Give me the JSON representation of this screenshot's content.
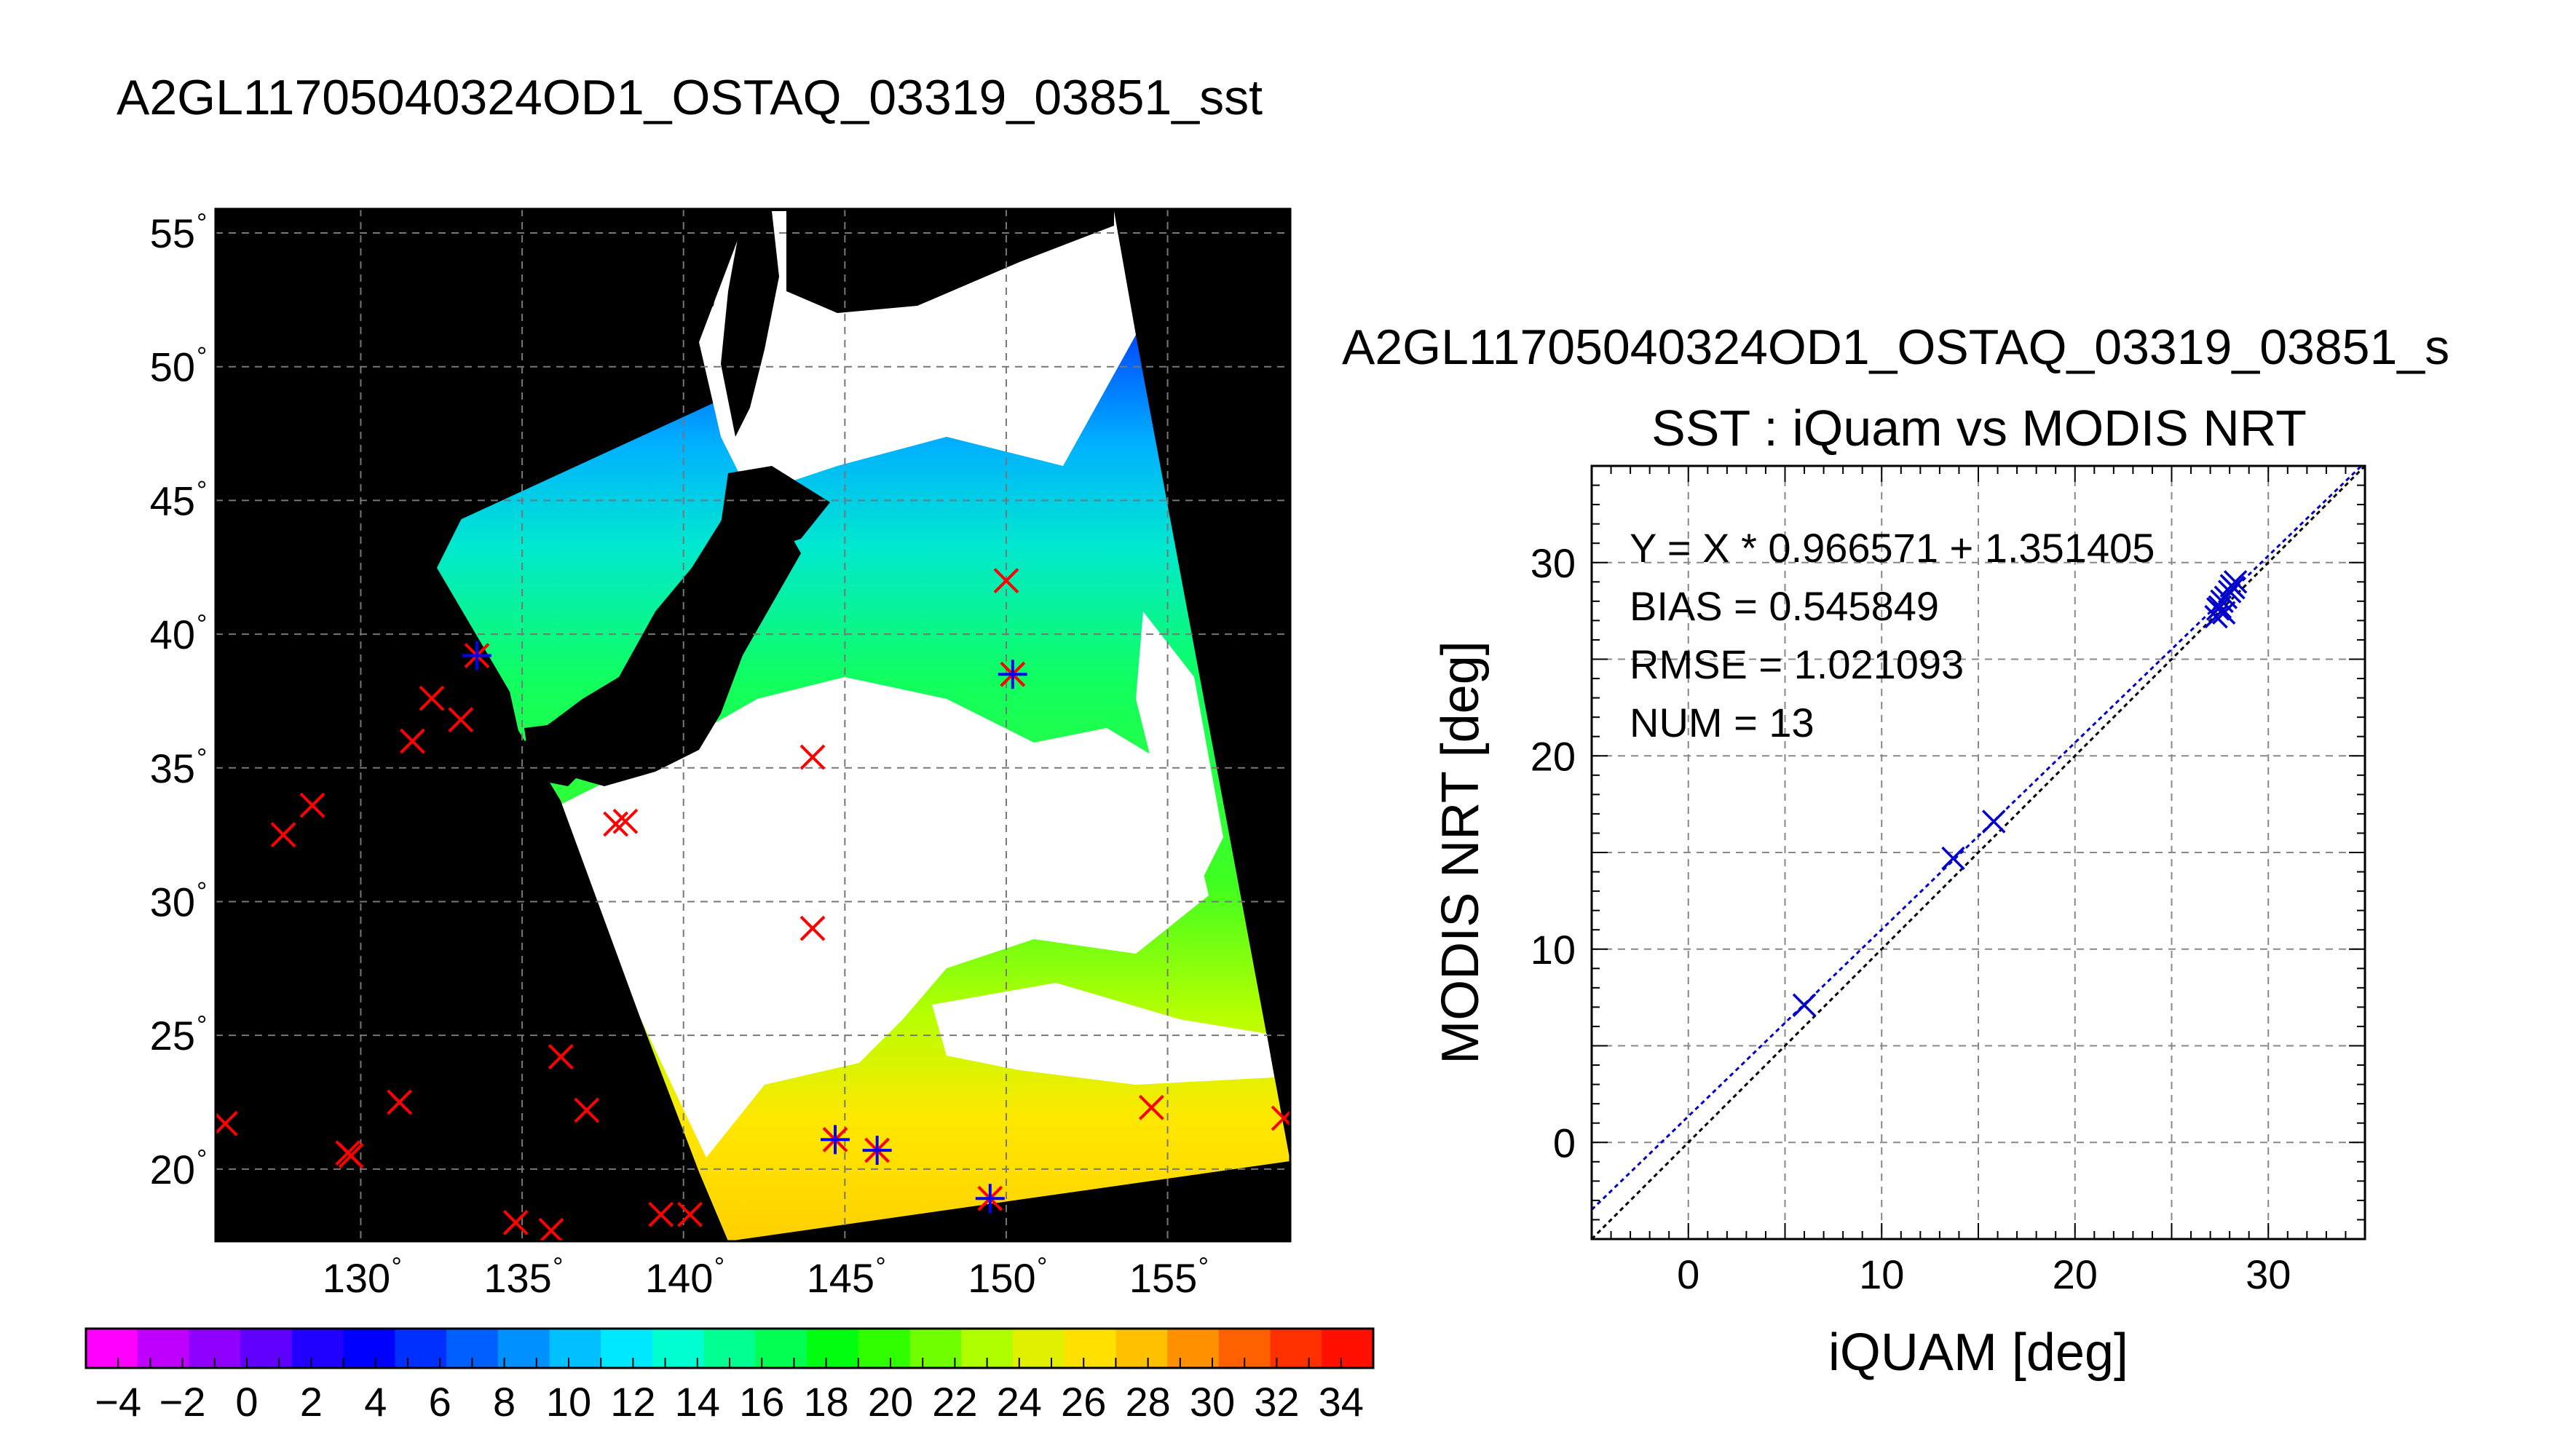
{
  "map": {
    "title": "A2GL11705040324OD1_OSTAQ_03319_03851_sst",
    "lat_ticks": [
      55,
      50,
      45,
      40,
      35,
      30,
      25,
      20
    ],
    "lon_ticks": [
      130,
      135,
      140,
      145,
      150,
      155
    ],
    "degree_symbol": "°",
    "lon_range": [
      125.5,
      158.8
    ],
    "lat_range": [
      17.3,
      55.9
    ],
    "ocean_color": "#000000",
    "cloud_color": "#ffffff",
    "match_markers": [
      {
        "lon": 133.6,
        "lat": 39.2,
        "paired": true
      },
      {
        "lon": 150.2,
        "lat": 38.5,
        "paired": true
      },
      {
        "lon": 144.7,
        "lat": 21.1,
        "paired": true
      },
      {
        "lon": 146.0,
        "lat": 20.7,
        "paired": true
      },
      {
        "lon": 149.5,
        "lat": 18.9,
        "paired": true
      },
      {
        "lon": 150.0,
        "lat": 42.0,
        "paired": false
      },
      {
        "lon": 131.6,
        "lat": 36.0,
        "paired": false
      },
      {
        "lon": 132.2,
        "lat": 37.6,
        "paired": false
      },
      {
        "lon": 133.1,
        "lat": 36.8,
        "paired": false
      },
      {
        "lon": 127.6,
        "lat": 32.5,
        "paired": false
      },
      {
        "lon": 128.5,
        "lat": 33.6,
        "paired": false
      },
      {
        "lon": 137.9,
        "lat": 32.9,
        "paired": false
      },
      {
        "lon": 138.2,
        "lat": 33.0,
        "paired": false
      },
      {
        "lon": 144.0,
        "lat": 35.4,
        "paired": false
      },
      {
        "lon": 144.0,
        "lat": 29.0,
        "paired": false
      },
      {
        "lon": 136.2,
        "lat": 24.2,
        "paired": false
      },
      {
        "lon": 137.0,
        "lat": 22.2,
        "paired": false
      },
      {
        "lon": 131.2,
        "lat": 22.5,
        "paired": false
      },
      {
        "lon": 129.6,
        "lat": 20.6,
        "paired": false
      },
      {
        "lon": 129.7,
        "lat": 20.5,
        "paired": false
      },
      {
        "lon": 125.8,
        "lat": 21.7,
        "paired": false
      },
      {
        "lon": 134.8,
        "lat": 18.0,
        "paired": false
      },
      {
        "lon": 135.9,
        "lat": 17.7,
        "paired": false
      },
      {
        "lon": 139.3,
        "lat": 18.3,
        "paired": false
      },
      {
        "lon": 140.2,
        "lat": 18.3,
        "paired": false
      },
      {
        "lon": 154.5,
        "lat": 22.3,
        "paired": false
      },
      {
        "lon": 158.6,
        "lat": 21.9,
        "paired": false
      }
    ]
  },
  "colorbar": {
    "labels": [
      "−4",
      "−2",
      "0",
      "2",
      "4",
      "6",
      "8",
      "10",
      "12",
      "14",
      "16",
      "18",
      "20",
      "22",
      "24",
      "26",
      "28",
      "30",
      "32",
      "34"
    ],
    "min": -5,
    "max": 35,
    "colors": [
      "#ff00ff",
      "#c000ff",
      "#9000ff",
      "#6000ff",
      "#2000ff",
      "#0000ff",
      "#0030ff",
      "#0060ff",
      "#0090ff",
      "#00c0ff",
      "#00e8ff",
      "#00ffd0",
      "#00ff90",
      "#00ff50",
      "#00ff10",
      "#30ff00",
      "#70ff00",
      "#b0ff00",
      "#e0f000",
      "#ffe000",
      "#ffc000",
      "#ff9000",
      "#ff6000",
      "#ff3000",
      "#ff1000"
    ]
  },
  "chart_data": {
    "type": "scatter",
    "file_title": "A2GL11705040324OD1_OSTAQ_03319_03851_s",
    "title": "SST : iQuam vs MODIS NRT",
    "xlabel": "iQUAM [deg]",
    "ylabel": "MODIS NRT [deg]",
    "xlim": [
      -5,
      35
    ],
    "ylim": [
      -5,
      35
    ],
    "xticks": [
      0,
      10,
      20,
      30
    ],
    "yticks": [
      0,
      10,
      20,
      30
    ],
    "grid": true,
    "annotations": [
      "Y = X * 0.966571 + 1.351405",
      "BIAS = 0.545849",
      "RMSE = 1.021093",
      "NUM = 13"
    ],
    "fit": {
      "slope": 0.966571,
      "intercept": 1.351405,
      "color": "#0000cc"
    },
    "identity_line": {
      "color": "#000000"
    },
    "marker_color": "#0000cc",
    "points": [
      {
        "x": 6.0,
        "y": 7.1
      },
      {
        "x": 13.7,
        "y": 14.7
      },
      {
        "x": 15.8,
        "y": 16.6
      },
      {
        "x": 27.3,
        "y": 27.2
      },
      {
        "x": 27.4,
        "y": 27.6
      },
      {
        "x": 27.5,
        "y": 27.7
      },
      {
        "x": 27.6,
        "y": 28.0
      },
      {
        "x": 27.7,
        "y": 27.4
      },
      {
        "x": 27.8,
        "y": 28.2
      },
      {
        "x": 28.0,
        "y": 28.5
      },
      {
        "x": 28.1,
        "y": 28.8
      },
      {
        "x": 28.2,
        "y": 28.7
      },
      {
        "x": 28.3,
        "y": 29.0
      }
    ]
  }
}
